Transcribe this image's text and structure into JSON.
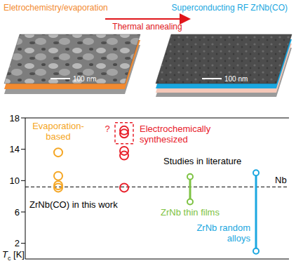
{
  "header": {
    "left_label": "Eletrochemistry/evaporation",
    "right_label": "Superconducting RF ZrNb(CO)",
    "arrow_label": "Thermal annealing",
    "scale_bar": "100 nm",
    "left_color": "#f28a30",
    "right_color": "#1aa7e0",
    "arrow_color": "#e0161b"
  },
  "chart_data": {
    "type": "scatter",
    "y_label": "Tc [K]",
    "ylim": [
      0,
      18
    ],
    "yticks": [
      2,
      6,
      10,
      14,
      18
    ],
    "tick_labels": "y",
    "series": [
      {
        "name": "Evaporation-based",
        "color": "#f5a623",
        "marker": "circle",
        "values": [
          13.6,
          10.6,
          9.4,
          9.1
        ]
      },
      {
        "name": "Electrochemically synthesized",
        "color": "#e8202a",
        "marker": "circle",
        "values": [
          9.1,
          13.2,
          13.8,
          16.0,
          16.4
        ]
      },
      {
        "name": "ZrNb thin films",
        "type": "range",
        "color": "#7dc242",
        "values": [
          7.3,
          10.5
        ]
      },
      {
        "name": "ZrNb random alloys",
        "type": "range",
        "color": "#1aa7e0",
        "values": [
          1.0,
          11.0
        ]
      }
    ],
    "reference_line": {
      "label": "Nb",
      "value": 9.2,
      "line_style": "dashed"
    },
    "group_labels": [
      "ZrNb(CO) in this work",
      "Studies in literature"
    ],
    "annotation": "?"
  }
}
